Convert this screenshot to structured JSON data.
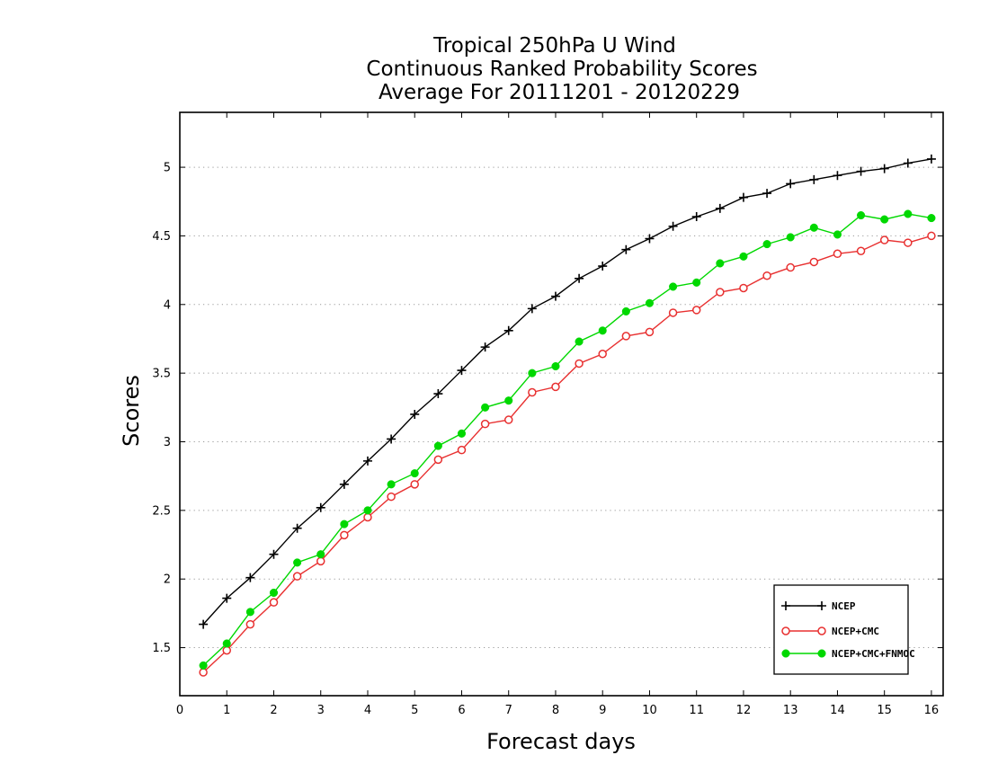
{
  "chart_data": {
    "type": "line",
    "title": [
      "Tropical 250hPa U Wind",
      "Continuous Ranked Probability Scores",
      "Average For 20111201 - 20120229"
    ],
    "xlabel": "Forecast days",
    "ylabel": "Scores",
    "xlim": [
      0,
      16.25
    ],
    "ylim": [
      1.15,
      5.4
    ],
    "xticks": [
      "0",
      "1",
      "2",
      "3",
      "4",
      "5",
      "6",
      "7",
      "8",
      "9",
      "10",
      "11",
      "12",
      "13",
      "14",
      "15",
      "16"
    ],
    "yticks": [
      "1.5",
      "2",
      "2.5",
      "3",
      "3.5",
      "4",
      "4.5",
      "5"
    ],
    "grid": "horizontal dotted",
    "legend_position": "bottom-right",
    "x": [
      0.5,
      1,
      1.5,
      2,
      2.5,
      3,
      3.5,
      4,
      4.5,
      5,
      5.5,
      6,
      6.5,
      7,
      7.5,
      8,
      8.5,
      9,
      9.5,
      10,
      10.5,
      11,
      11.5,
      12,
      12.5,
      13,
      13.5,
      14,
      14.5,
      15,
      15.5,
      16
    ],
    "series": [
      {
        "name": "NCEP",
        "color": "#000000",
        "marker": "plus",
        "values": [
          1.67,
          1.86,
          2.01,
          2.18,
          2.37,
          2.52,
          2.69,
          2.86,
          3.02,
          3.2,
          3.35,
          3.52,
          3.69,
          3.81,
          3.97,
          4.06,
          4.19,
          4.28,
          4.4,
          4.48,
          4.57,
          4.64,
          4.7,
          4.78,
          4.81,
          4.88,
          4.91,
          4.94,
          4.97,
          4.99,
          5.03,
          5.06
        ]
      },
      {
        "name": "NCEP+CMC",
        "color": "#e83030",
        "marker": "open-circle",
        "values": [
          1.32,
          1.48,
          1.67,
          1.83,
          2.02,
          2.13,
          2.32,
          2.45,
          2.6,
          2.69,
          2.87,
          2.94,
          3.13,
          3.16,
          3.36,
          3.4,
          3.57,
          3.64,
          3.77,
          3.8,
          3.94,
          3.96,
          4.09,
          4.12,
          4.21,
          4.27,
          4.31,
          4.37,
          4.39,
          4.47,
          4.45,
          4.5
        ]
      },
      {
        "name": "NCEP+CMC+FNMOC",
        "color": "#00d800",
        "marker": "filled-circle",
        "values": [
          1.37,
          1.53,
          1.76,
          1.9,
          2.12,
          2.18,
          2.4,
          2.5,
          2.69,
          2.77,
          2.97,
          3.06,
          3.25,
          3.3,
          3.5,
          3.55,
          3.73,
          3.81,
          3.95,
          4.01,
          4.13,
          4.16,
          4.3,
          4.35,
          4.44,
          4.49,
          4.56,
          4.51,
          4.65,
          4.62,
          4.66,
          4.63
        ]
      }
    ]
  }
}
